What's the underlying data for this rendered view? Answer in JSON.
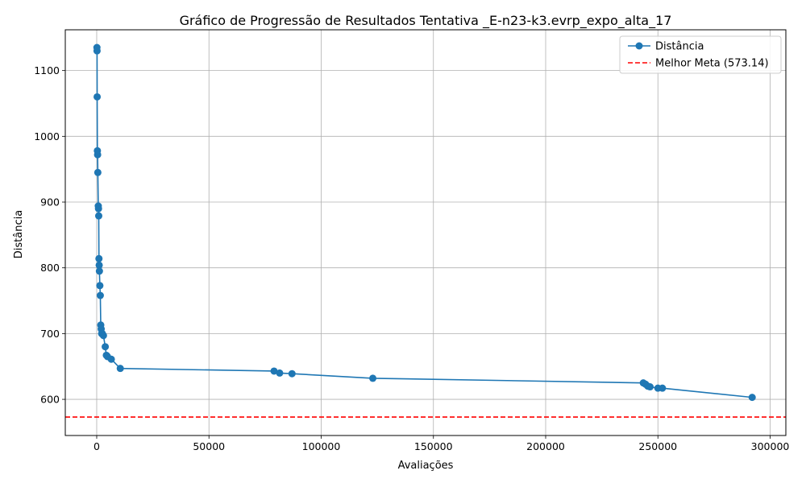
{
  "chart_data": {
    "type": "line",
    "title": "Gráfico de Progressão de Resultados Tentativa _E-n23-k3.evrp_expo_alta_17",
    "xlabel": "Avaliações",
    "ylabel": "Distância",
    "xlim": [
      -14000,
      307000
    ],
    "ylim": [
      545,
      1162
    ],
    "x_ticks": [
      0,
      50000,
      100000,
      150000,
      200000,
      250000,
      300000
    ],
    "x_tick_labels": [
      "0",
      "50000",
      "100000",
      "150000",
      "200000",
      "250000",
      "300000"
    ],
    "y_ticks": [
      600,
      700,
      800,
      900,
      1000,
      1100
    ],
    "y_tick_labels": [
      "600",
      "700",
      "800",
      "900",
      "1000",
      "1100"
    ],
    "grid": true,
    "legend_position": "top-right",
    "series": [
      {
        "name": "Distância",
        "color": "#1f77b4",
        "marker": "circle",
        "x": [
          100,
          150,
          200,
          300,
          400,
          500,
          700,
          800,
          900,
          1000,
          1100,
          1200,
          1400,
          1600,
          1800,
          2000,
          2200,
          2500,
          3000,
          3800,
          4300,
          4800,
          6500,
          10500,
          79000,
          81500,
          87000,
          123000,
          243500,
          244500,
          245500,
          246500,
          250000,
          252000,
          292000
        ],
        "y": [
          1135,
          1130,
          1060,
          978,
          972,
          945,
          894,
          890,
          879,
          814,
          804,
          795,
          773,
          758,
          713,
          707,
          700,
          700,
          697,
          680,
          667,
          665,
          661,
          647,
          643,
          640,
          639,
          632,
          625,
          623,
          620,
          619,
          617,
          617,
          603
        ]
      }
    ],
    "reference_line": {
      "label": "Melhor Meta (573.14)",
      "y": 573.14,
      "color": "#ff0000",
      "style": "dashed"
    }
  }
}
